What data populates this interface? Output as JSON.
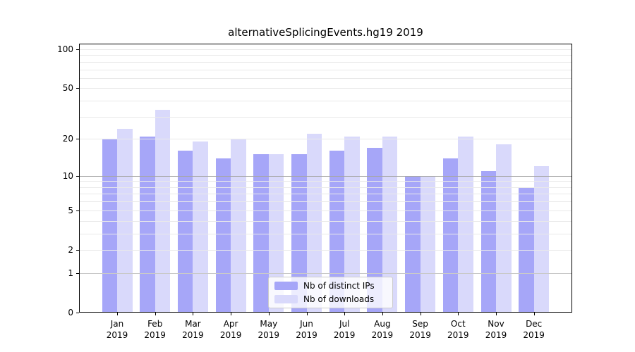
{
  "title": "alternativeSplicingEvents.hg19 2019",
  "chart_data": {
    "type": "bar",
    "title": "alternativeSplicingEvents.hg19 2019",
    "xlabel": "",
    "ylabel": "",
    "categories": [
      "Jan 2019",
      "Feb 2019",
      "Mar 2019",
      "Apr 2019",
      "May 2019",
      "Jun 2019",
      "Jul 2019",
      "Aug 2019",
      "Sep 2019",
      "Oct 2019",
      "Nov 2019",
      "Dec 2019"
    ],
    "series": [
      {
        "name": "Nb of distinct IPs",
        "color": "#a6a6f8",
        "values": [
          20,
          21,
          16,
          14,
          15,
          15,
          16,
          17,
          10,
          14,
          11,
          8
        ]
      },
      {
        "name": "Nb of downloads",
        "color": "#d9d9fb",
        "values": [
          24,
          34,
          19,
          20,
          15,
          22,
          21,
          21,
          10,
          21,
          18,
          12
        ]
      }
    ],
    "yscale": "log(value+1)",
    "ylim": [
      0,
      110
    ],
    "yticks": [
      0,
      1,
      2,
      5,
      10,
      20,
      50,
      100
    ],
    "gridlines": [
      1,
      2,
      3,
      4,
      5,
      6,
      7,
      8,
      9,
      10,
      20,
      30,
      40,
      50,
      60,
      70,
      80,
      90,
      100
    ],
    "grid": true,
    "legend_position": "lower center"
  },
  "legend": {
    "items": [
      {
        "label": "Nb of distinct IPs"
      },
      {
        "label": "Nb of downloads"
      }
    ]
  }
}
